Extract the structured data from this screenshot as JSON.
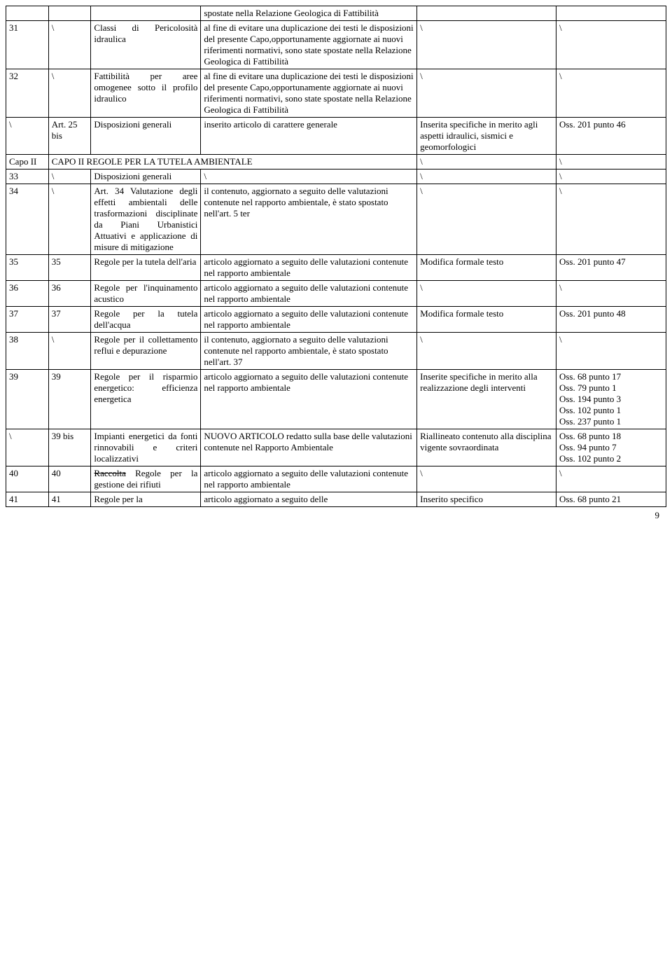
{
  "rows": [
    {
      "c0": "",
      "c1": "",
      "c2": "",
      "c3": "spostate nella Relazione Geologica di Fattibilità",
      "c4": "",
      "c5": ""
    },
    {
      "c0": "31",
      "c1": "\\",
      "c2": "Classi di Pericolosità idraulica",
      "c3": "al fine di evitare una duplicazione dei testi le disposizioni del presente Capo,opportunamente aggiornate ai nuovi riferimenti normativi, sono state spostate nella Relazione Geologica di Fattibilità",
      "c4": "\\",
      "c5": "\\"
    },
    {
      "c0": "32",
      "c1": "\\",
      "c2": "Fattibilità per aree omogenee sotto il profilo idraulico",
      "c3": "al fine di evitare una duplicazione dei testi le disposizioni del presente Capo,opportunamente aggiornate ai nuovi riferimenti normativi, sono state spostate nella Relazione Geologica di Fattibilità",
      "c4": "\\",
      "c5": "\\"
    },
    {
      "c0": "\\",
      "c1": "Art. 25 bis",
      "c2": "Disposizioni generali",
      "c3": "inserito articolo di carattere generale",
      "c4": "Inserita specifiche in merito agli aspetti idraulici, sismici e geomorfologici",
      "c5": "Oss. 201 punto 46"
    },
    {
      "c0": "Capo II",
      "c1_span": "CAPO II REGOLE PER LA TUTELA AMBIENTALE",
      "c4": "\\",
      "c5": "\\",
      "merge_1_3": true
    },
    {
      "c0": "33",
      "c1": "\\",
      "c2": "Disposizioni generali",
      "c3": "\\",
      "c4": "\\",
      "c5": "\\"
    },
    {
      "c0": "34",
      "c1": "\\",
      "c2": "Art. 34 Valutazione degli effetti ambientali delle trasformazioni disciplinate da Piani Urbanistici Attuativi e applicazione di misure di mitigazione",
      "c3": "il contenuto, aggiornato a seguito delle valutazioni contenute nel rapporto ambientale, è stato spostato nell'art. 5 ter",
      "c4": "\\",
      "c5": "\\"
    },
    {
      "c0": "35",
      "c1": "35",
      "c2": " Regole per la tutela dell'aria",
      "c3": "articolo aggiornato a seguito delle valutazioni contenute nel rapporto ambientale",
      "c4": "Modifica formale testo",
      "c5": "Oss. 201 punto 47"
    },
    {
      "c0": "36",
      "c1": "36",
      "c2": " Regole per l'inquinamento acustico",
      "c3": "articolo aggiornato a seguito delle valutazioni contenute nel rapporto ambientale",
      "c4": "\\",
      "c5": "\\"
    },
    {
      "c0": "37",
      "c1": "37",
      "c2": "Regole per la tutela dell'acqua",
      "c3": "articolo aggiornato a seguito delle valutazioni contenute nel rapporto ambientale",
      "c4": "Modifica formale testo",
      "c5": "Oss. 201 punto 48"
    },
    {
      "c0": "38",
      "c1": "\\",
      "c2": "Regole per il collettamento reflui e depurazione",
      "c3": "il contenuto, aggiornato a seguito delle valutazioni contenute nel rapporto ambientale, è stato spostato nell'art. 37",
      "c4": "\\",
      "c5": "\\"
    },
    {
      "c0": "39",
      "c1": "39",
      "c2": "Regole per il risparmio energetico: efficienza energetica",
      "c3": "articolo aggiornato a seguito delle valutazioni contenute nel rapporto ambientale",
      "c4": "Inserite specifiche in merito alla realizzazione degli interventi",
      "c5": "Oss. 68 punto 17\nOss. 79 punto 1\nOss. 194 punto 3\nOss. 102 punto 1\nOss. 237 punto 1"
    },
    {
      "c0": "\\",
      "c1": "39 bis",
      "c2": "Impianti energetici da fonti rinnovabili e criteri localizzativi",
      "c3": "NUOVO ARTICOLO redatto sulla base delle valutazioni contenute nel Rapporto Ambientale",
      "c4": "Riallineato contenuto alla disciplina vigente sovraordinata",
      "c5": "Oss. 68 punto 18\nOss. 94 punto 7\nOss. 102 punto 2"
    },
    {
      "c0": "40",
      "c1": "40",
      "c2_strike": "Raccolta",
      "c2_rest": " Regole per la gestione dei rifiuti",
      "c3": "articolo aggiornato a seguito delle valutazioni contenute nel rapporto ambientale",
      "c4": "\\",
      "c5": "\\"
    },
    {
      "c0": "41",
      "c1": "41",
      "c2": "Regole per la",
      "c3": "articolo aggiornato a seguito delle",
      "c4": "Inserito specifico",
      "c5": "Oss. 68 punto 21"
    }
  ],
  "page_number": "9"
}
